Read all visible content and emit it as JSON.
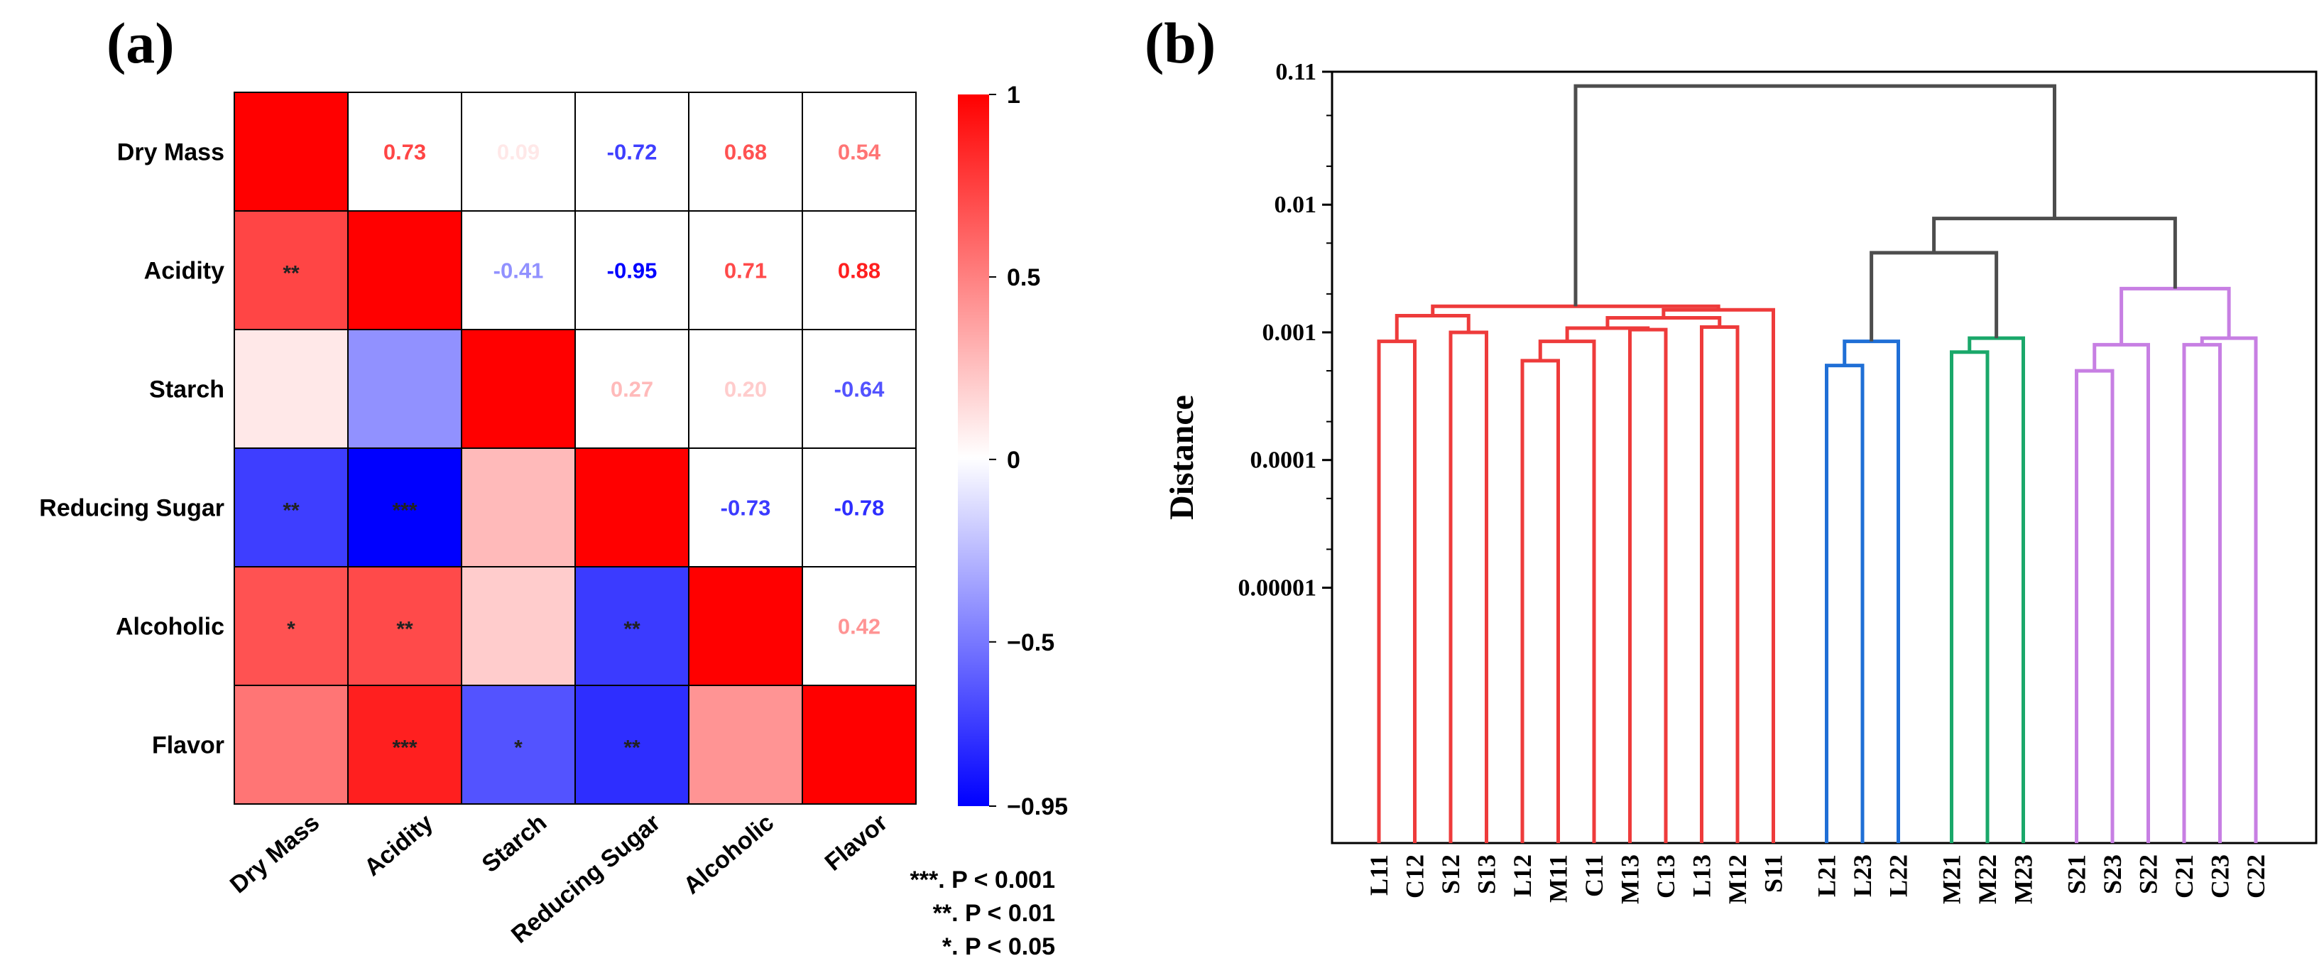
{
  "panels": {
    "a": "(a)",
    "b": "(b)"
  },
  "chart_data": [
    {
      "type": "heatmap",
      "panel": "(a)",
      "variables": [
        "Dry Mass",
        "Acidity",
        "Starch",
        "Reducing Sugar",
        "Alcoholic",
        "Flavor"
      ],
      "correlations": [
        [
          1,
          0.73,
          0.09,
          -0.72,
          0.68,
          0.54
        ],
        [
          0.73,
          1,
          -0.41,
          -0.95,
          0.71,
          0.88
        ],
        [
          0.09,
          -0.41,
          1,
          0.27,
          0.2,
          -0.64
        ],
        [
          -0.72,
          -0.95,
          0.27,
          1,
          -0.73,
          -0.78
        ],
        [
          0.68,
          0.71,
          0.2,
          -0.73,
          1,
          0.42
        ],
        [
          0.54,
          0.88,
          -0.64,
          -0.78,
          0.42,
          1
        ]
      ],
      "significance": [
        [
          "",
          "",
          "",
          "",
          "",
          ""
        ],
        [
          "**",
          "",
          "",
          "",
          "",
          ""
        ],
        [
          "",
          "",
          "",
          "",
          "",
          ""
        ],
        [
          "**",
          "***",
          "",
          "",
          "",
          ""
        ],
        [
          "*",
          "**",
          "",
          "**",
          "",
          ""
        ],
        [
          "",
          "***",
          "*",
          "**",
          "",
          ""
        ]
      ],
      "colorbar": {
        "min": -0.95,
        "max": 1,
        "ticks": [
          1,
          0.5,
          0,
          -0.5,
          -0.95
        ],
        "tick_labels": [
          "1",
          "0.5",
          "0",
          "−0.5",
          "−0.95"
        ],
        "colors": {
          "high": "#ff0000",
          "mid": "#ffffff",
          "low": "#0000ff"
        }
      },
      "legend": [
        "***. P < 0.001",
        "**. P < 0.01",
        "*. P < 0.05"
      ],
      "colors": {
        "positive_text": "#ff0000",
        "negative_text": "#0000ff"
      }
    },
    {
      "type": "dendrogram",
      "panel": "(b)",
      "ylabel": "Distance",
      "yscale": "log",
      "ylim": [
        1e-07,
        0.11
      ],
      "yticks": [
        0.11,
        0.01,
        0.001,
        0.0001,
        1e-05
      ],
      "ytick_labels": [
        "0.11",
        "0.01",
        "0.001",
        "0.0001",
        "0.00001"
      ],
      "leaves": [
        {
          "label": "L11",
          "cluster": 0
        },
        {
          "label": "C12",
          "cluster": 0
        },
        {
          "label": "S12",
          "cluster": 0
        },
        {
          "label": "S13",
          "cluster": 0
        },
        {
          "label": "L12",
          "cluster": 0
        },
        {
          "label": "M11",
          "cluster": 0
        },
        {
          "label": "C11",
          "cluster": 0
        },
        {
          "label": "M13",
          "cluster": 0
        },
        {
          "label": "C13",
          "cluster": 0
        },
        {
          "label": "L13",
          "cluster": 0
        },
        {
          "label": "M12",
          "cluster": 0
        },
        {
          "label": "S11",
          "cluster": 0
        },
        {
          "label": "L21",
          "cluster": 1
        },
        {
          "label": "L23",
          "cluster": 1
        },
        {
          "label": "L22",
          "cluster": 1
        },
        {
          "label": "M21",
          "cluster": 2
        },
        {
          "label": "M22",
          "cluster": 2
        },
        {
          "label": "M23",
          "cluster": 2
        },
        {
          "label": "S21",
          "cluster": 3
        },
        {
          "label": "S23",
          "cluster": 3
        },
        {
          "label": "S22",
          "cluster": 3
        },
        {
          "label": "C21",
          "cluster": 3
        },
        {
          "label": "C23",
          "cluster": 3
        },
        {
          "label": "C22",
          "cluster": 3
        }
      ],
      "cluster_colors": [
        "#ee3b3b",
        "#1f6fd6",
        "#1aa86a",
        "#c77fe3"
      ],
      "link_color_upper": "#4d4d4d",
      "merges": [
        {
          "a": 0,
          "b": 1,
          "h": 0.00085,
          "c": 0
        },
        {
          "a": 2,
          "b": 3,
          "h": 0.001,
          "c": 0
        },
        {
          "a": 24,
          "b": 25,
          "h": 0.00135,
          "c": 0
        },
        {
          "a": 4,
          "b": 5,
          "h": 0.0006,
          "c": 0
        },
        {
          "a": 27,
          "b": 6,
          "h": 0.00085,
          "c": 0
        },
        {
          "a": 7,
          "b": 8,
          "h": 0.00105,
          "c": 0
        },
        {
          "a": 28,
          "b": 29,
          "h": 0.00108,
          "c": 0
        },
        {
          "a": 9,
          "b": 10,
          "h": 0.0011,
          "c": 0
        },
        {
          "a": 30,
          "b": 31,
          "h": 0.0013,
          "c": 0
        },
        {
          "a": 32,
          "b": 11,
          "h": 0.0015,
          "c": 0
        },
        {
          "a": 26,
          "b": 33,
          "h": 0.0016,
          "c": 0
        },
        {
          "a": 12,
          "b": 13,
          "h": 0.00055,
          "c": 1
        },
        {
          "a": 35,
          "b": 14,
          "h": 0.00085,
          "c": 1
        },
        {
          "a": 15,
          "b": 16,
          "h": 0.0007,
          "c": 2
        },
        {
          "a": 37,
          "b": 17,
          "h": 0.0009,
          "c": 2
        },
        {
          "a": 18,
          "b": 19,
          "h": 0.0005,
          "c": 3
        },
        {
          "a": 39,
          "b": 20,
          "h": 0.0008,
          "c": 3
        },
        {
          "a": 21,
          "b": 22,
          "h": 0.0008,
          "c": 3
        },
        {
          "a": 41,
          "b": 23,
          "h": 0.0009,
          "c": 3
        },
        {
          "a": 40,
          "b": 42,
          "h": 0.0022,
          "c": 3
        },
        {
          "a": 36,
          "b": 38,
          "h": 0.0042,
          "c": -1
        },
        {
          "a": 44,
          "b": 43,
          "h": 0.0078,
          "c": -1
        },
        {
          "a": 34,
          "b": 45,
          "h": 0.085,
          "c": -1
        }
      ]
    }
  ]
}
